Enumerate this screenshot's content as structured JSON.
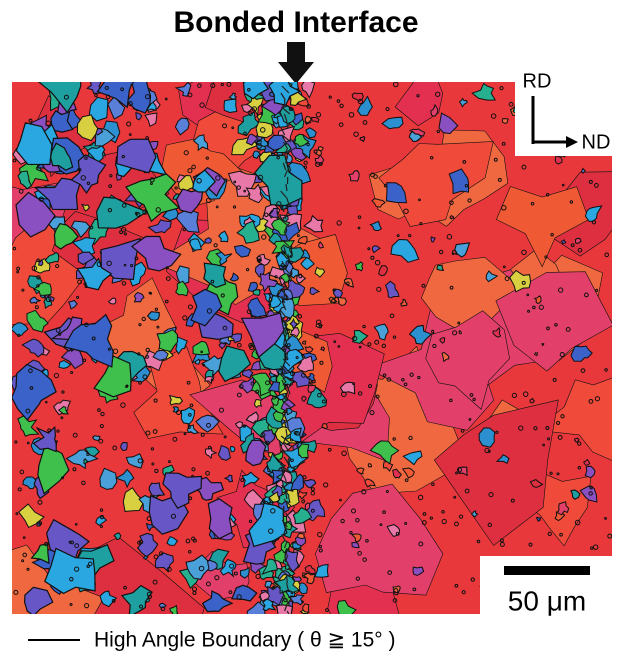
{
  "header": {
    "title": "Bonded Interface"
  },
  "orientation": {
    "vertical": "RD",
    "horizontal": "ND"
  },
  "scale_bar": {
    "label": "50 μm"
  },
  "legend": {
    "label": "High Angle Boundary ( θ ≧ 15° )"
  }
}
